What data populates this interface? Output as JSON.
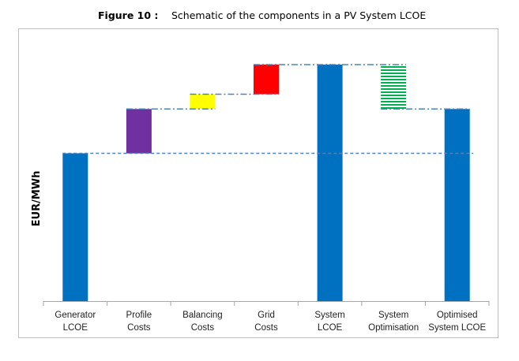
{
  "figure": {
    "label": "Figure 10 :",
    "caption": "Schematic of the components in a PV System LCOE"
  },
  "colors": {
    "blue": "#0070c0",
    "purple": "#7030a0",
    "yellow": "#ffff00",
    "red": "#ff0000",
    "green_hatch": "#00b050",
    "connector": "#4f81bd"
  },
  "chart_data": {
    "type": "bar",
    "subtype": "waterfall",
    "title": "",
    "xlabel": "",
    "ylabel": "EUR/MWh",
    "categories": [
      [
        "Generator",
        "LCOE"
      ],
      [
        "Profile",
        "Costs"
      ],
      [
        "Balancing",
        "Costs"
      ],
      [
        "Grid",
        "Costs"
      ],
      [
        "System",
        "LCOE"
      ],
      [
        "System",
        "Optimisation"
      ],
      [
        "Optimised",
        "System LCOE"
      ]
    ],
    "bars": [
      {
        "base": 0,
        "top": 100,
        "kind": "total",
        "color": "blue"
      },
      {
        "base": 100,
        "top": 130,
        "kind": "increase",
        "color": "purple"
      },
      {
        "base": 130,
        "top": 140,
        "kind": "increase",
        "color": "yellow"
      },
      {
        "base": 140,
        "top": 160,
        "kind": "increase",
        "color": "red"
      },
      {
        "base": 0,
        "top": 160,
        "kind": "total",
        "color": "blue"
      },
      {
        "base": 130,
        "top": 160,
        "kind": "decrease",
        "color": "green_hatch"
      },
      {
        "base": 0,
        "top": 130,
        "kind": "total",
        "color": "blue"
      }
    ],
    "reference_line": 100,
    "ylim": [
      0,
      175
    ],
    "y_ticks_shown": false,
    "grid": false,
    "legend": "none"
  }
}
